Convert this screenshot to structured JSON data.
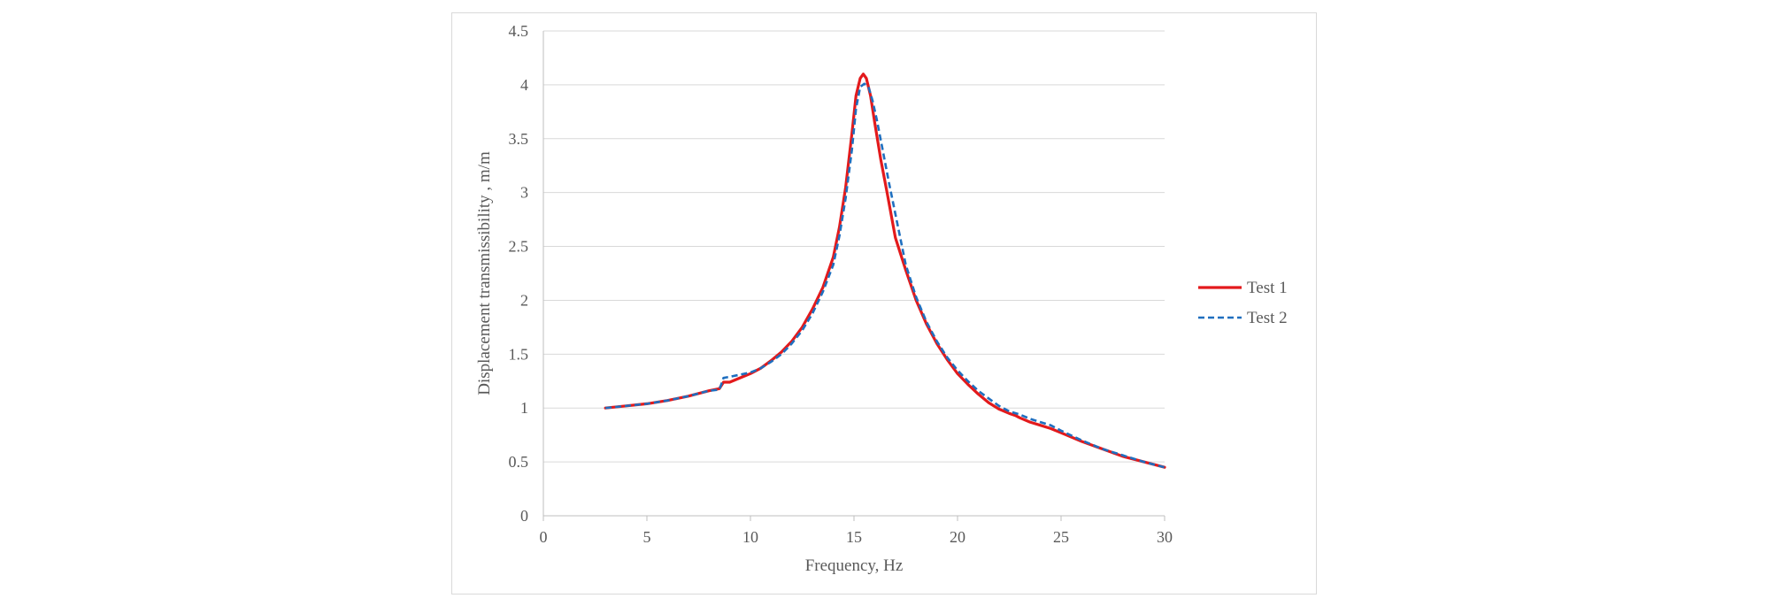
{
  "chart_data": {
    "type": "line",
    "title": "",
    "xlabel": "Frequency, Hz",
    "ylabel": "Displacement transmissibility , m/m",
    "xlim": [
      0,
      30
    ],
    "ylim": [
      0,
      4.5
    ],
    "x_ticks": [
      "0",
      "5",
      "10",
      "15",
      "20",
      "25",
      "30"
    ],
    "y_ticks": [
      "0",
      "0.5",
      "1",
      "1.5",
      "2",
      "2.5",
      "3",
      "3.5",
      "4",
      "4.5"
    ],
    "grid": "horizontal",
    "legend": "right",
    "series": [
      {
        "name": "Test 1",
        "color": "#e31a1c",
        "style": "solid",
        "x": [
          3,
          4,
          5,
          6,
          7,
          8,
          8.5,
          8.7,
          9,
          9.5,
          10,
          10.5,
          11,
          11.5,
          12,
          12.5,
          13,
          13.5,
          14,
          14.3,
          14.6,
          14.9,
          15.1,
          15.3,
          15.45,
          15.6,
          15.8,
          16,
          16.3,
          16.6,
          17,
          17.5,
          18,
          18.5,
          19,
          19.5,
          20,
          20.5,
          21,
          21.5,
          22,
          22.5,
          22.8,
          23,
          23.5,
          24,
          24.5,
          25,
          26,
          27,
          28,
          29,
          30
        ],
        "y": [
          1.0,
          1.02,
          1.04,
          1.07,
          1.11,
          1.16,
          1.18,
          1.24,
          1.24,
          1.28,
          1.32,
          1.37,
          1.44,
          1.52,
          1.62,
          1.75,
          1.92,
          2.12,
          2.4,
          2.68,
          3.05,
          3.55,
          3.9,
          4.06,
          4.1,
          4.06,
          3.9,
          3.65,
          3.3,
          3.0,
          2.58,
          2.28,
          2.0,
          1.78,
          1.6,
          1.45,
          1.32,
          1.22,
          1.13,
          1.05,
          0.99,
          0.95,
          0.93,
          0.91,
          0.87,
          0.84,
          0.81,
          0.77,
          0.69,
          0.62,
          0.55,
          0.5,
          0.45
        ]
      },
      {
        "name": "Test 2",
        "color": "#1f6fbf",
        "style": "dashed",
        "x": [
          3,
          4,
          5,
          6,
          7,
          8,
          8.5,
          8.7,
          9,
          9.5,
          10,
          10.5,
          11,
          11.5,
          12,
          12.5,
          13,
          13.5,
          14,
          14.3,
          14.6,
          14.9,
          15.1,
          15.3,
          15.5,
          15.7,
          15.9,
          16.1,
          16.4,
          16.7,
          17,
          17.5,
          18,
          18.5,
          19,
          19.5,
          20,
          20.5,
          21,
          21.5,
          22,
          22.5,
          23,
          23.5,
          24,
          24.5,
          25,
          26,
          27,
          28,
          29,
          30
        ],
        "y": [
          1.0,
          1.02,
          1.04,
          1.07,
          1.11,
          1.16,
          1.17,
          1.28,
          1.29,
          1.31,
          1.33,
          1.37,
          1.43,
          1.5,
          1.6,
          1.72,
          1.88,
          2.08,
          2.33,
          2.6,
          2.95,
          3.4,
          3.78,
          3.98,
          4.01,
          3.98,
          3.85,
          3.68,
          3.38,
          3.08,
          2.8,
          2.33,
          2.03,
          1.8,
          1.62,
          1.47,
          1.35,
          1.25,
          1.16,
          1.09,
          1.02,
          0.97,
          0.94,
          0.9,
          0.87,
          0.84,
          0.79,
          0.7,
          0.62,
          0.56,
          0.5,
          0.45
        ]
      }
    ]
  }
}
